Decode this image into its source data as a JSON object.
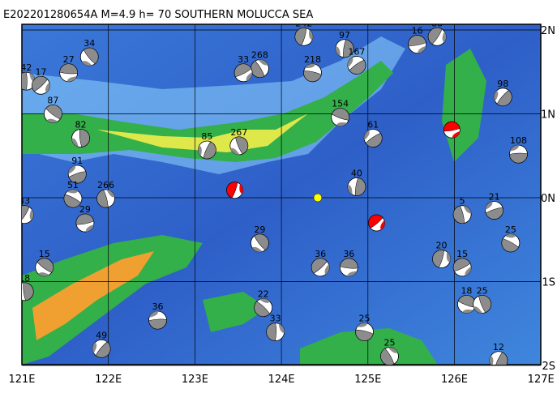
{
  "title": "E202201280654A  M=4.9 h= 70 SOUTHERN MOLUCCA SEA",
  "lon_ticks": [
    {
      "value": 121,
      "label": "121E"
    },
    {
      "value": 122,
      "label": "122E"
    },
    {
      "value": 123,
      "label": "123E"
    },
    {
      "value": 124,
      "label": "124E"
    },
    {
      "value": 125,
      "label": "125E"
    },
    {
      "value": 126,
      "label": "126E"
    },
    {
      "value": 127,
      "label": "127E"
    }
  ],
  "lat_ticks": [
    {
      "value": 2,
      "label": "2N"
    },
    {
      "value": 1,
      "label": "1N"
    },
    {
      "value": 0,
      "label": "0N"
    },
    {
      "value": -1,
      "label": "1S"
    },
    {
      "value": -2,
      "label": "2S"
    }
  ],
  "events": [
    {
      "lon": 121.05,
      "lat": 1.39,
      "depth": 42
    },
    {
      "lon": 121.22,
      "lat": 1.34,
      "depth": 17
    },
    {
      "lon": 121.54,
      "lat": 1.49,
      "depth": 27
    },
    {
      "lon": 121.78,
      "lat": 1.68,
      "depth": 34
    },
    {
      "lon": 124.73,
      "lat": 1.78,
      "depth": 97
    },
    {
      "lon": 124.87,
      "lat": 1.58,
      "depth": 167
    },
    {
      "lon": 124.36,
      "lat": 1.49,
      "depth": 218
    },
    {
      "lon": 123.75,
      "lat": 1.54,
      "depth": 268
    },
    {
      "lon": 124.26,
      "lat": 1.92,
      "depth": 242
    },
    {
      "lon": 123.56,
      "lat": 1.49,
      "depth": 33
    },
    {
      "lon": 124.68,
      "lat": 0.96,
      "depth": 154
    },
    {
      "lon": 123.51,
      "lat": 0.62,
      "depth": 267
    },
    {
      "lon": 123.14,
      "lat": 0.57,
      "depth": 85
    },
    {
      "lon": 121.64,
      "lat": 0.28,
      "depth": 91
    },
    {
      "lon": 121.59,
      "lat": -0.01,
      "depth": 51
    },
    {
      "lon": 121.97,
      "lat": -0.01,
      "depth": 266
    },
    {
      "lon": 121.03,
      "lat": -0.2,
      "depth": 43
    },
    {
      "lon": 121.73,
      "lat": -0.3,
      "depth": 29
    },
    {
      "lon": 121.26,
      "lat": -0.83,
      "depth": 15
    },
    {
      "lon": 121.03,
      "lat": -1.12,
      "depth": 18
    },
    {
      "lon": 121.92,
      "lat": -1.8,
      "depth": 49
    },
    {
      "lon": 122.57,
      "lat": -1.46,
      "depth": 36
    },
    {
      "lon": 123.79,
      "lat": -1.31,
      "depth": 22
    },
    {
      "lon": 123.93,
      "lat": -1.6,
      "depth": 33
    },
    {
      "lon": 124.45,
      "lat": -0.83,
      "depth": 36
    },
    {
      "lon": 124.78,
      "lat": -0.83,
      "depth": 36
    },
    {
      "lon": 123.75,
      "lat": -0.54,
      "depth": 29
    },
    {
      "lon": 124.87,
      "lat": 0.13,
      "depth": 40
    },
    {
      "lon": 125.06,
      "lat": 0.71,
      "depth": 61
    },
    {
      "lon": 124.96,
      "lat": -1.6,
      "depth": 25
    },
    {
      "lon": 125.25,
      "lat": -1.89,
      "depth": 25
    },
    {
      "lon": 125.85,
      "lat": -0.73,
      "depth": 20
    },
    {
      "lon": 126.09,
      "lat": -0.83,
      "depth": 15
    },
    {
      "lon": 126.14,
      "lat": -1.27,
      "depth": 18
    },
    {
      "lon": 126.32,
      "lat": -1.27,
      "depth": 25
    },
    {
      "lon": 126.51,
      "lat": -1.94,
      "depth": 12
    },
    {
      "lon": 126.46,
      "lat": -0.15,
      "depth": 21
    },
    {
      "lon": 126.65,
      "lat": -0.54,
      "depth": 25
    },
    {
      "lon": 126.09,
      "lat": -0.2,
      "depth": 5
    },
    {
      "lon": 125.8,
      "lat": 1.92,
      "depth": 88
    },
    {
      "lon": 125.57,
      "lat": 1.83,
      "depth": 16
    },
    {
      "lon": 121.36,
      "lat": 1.0,
      "depth": 87
    },
    {
      "lon": 121.68,
      "lat": 0.71,
      "depth": 82
    },
    {
      "lon": 126.56,
      "lat": 1.2,
      "depth": 98
    },
    {
      "lon": 126.74,
      "lat": 0.52,
      "depth": 108
    }
  ],
  "highlights": [
    {
      "lon": 123.46,
      "lat": 0.09,
      "color": "#ff0000"
    },
    {
      "lon": 125.1,
      "lat": -0.3,
      "color": "#ff0000"
    },
    {
      "lon": 125.97,
      "lat": 0.81,
      "color": "#ff0000"
    }
  ],
  "main_event": {
    "lon": 124.42,
    "lat": 0.0,
    "color": "#ffff00"
  }
}
